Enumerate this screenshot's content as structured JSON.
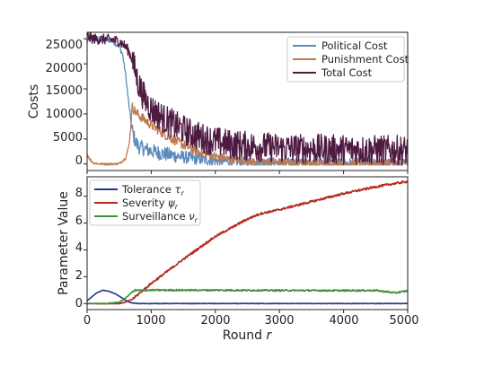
{
  "chart_data": [
    {
      "type": "line",
      "ylabel": "Costs",
      "xlim": [
        0,
        5000
      ],
      "ylim": [
        -1300,
        26300
      ],
      "xticks": [
        0,
        1000,
        2000,
        3000,
        4000,
        5000
      ],
      "yticks": [
        0,
        5000,
        10000,
        15000,
        20000,
        25000
      ],
      "ytick_labels": [
        "0",
        "5000",
        "10000",
        "15000",
        "20000",
        "25000"
      ],
      "legend_position": "top-right",
      "grid": false,
      "series": [
        {
          "name": "Political Cost",
          "color": "#5b8bbd",
          "x": [
            0,
            100,
            200,
            300,
            400,
            500,
            550,
            600,
            650,
            700,
            750,
            800,
            900,
            1000,
            1200,
            1400,
            1600,
            1800,
            2000,
            2200,
            2500,
            3000,
            3500,
            4000,
            4500,
            5000
          ],
          "y": [
            24600,
            24900,
            25000,
            24900,
            24500,
            23500,
            22000,
            18000,
            12000,
            7000,
            4500,
            3500,
            3000,
            2600,
            2000,
            1600,
            1200,
            900,
            700,
            500,
            350,
            250,
            200,
            150,
            120,
            100
          ],
          "noise": 1500
        },
        {
          "name": "Punishment Cost",
          "color": "#c07a50",
          "x": [
            0,
            50,
            100,
            200,
            300,
            400,
            500,
            600,
            650,
            680,
            700,
            750,
            800,
            900,
            1000,
            1200,
            1400,
            1600,
            1800,
            2000,
            2200,
            2500,
            3000,
            3500,
            4000,
            4500,
            5000
          ],
          "y": [
            2000,
            800,
            200,
            0,
            0,
            0,
            50,
            1200,
            3500,
            7000,
            11500,
            10500,
            9800,
            8800,
            7800,
            6000,
            4500,
            3200,
            2200,
            1500,
            1000,
            600,
            350,
            250,
            200,
            170,
            150
          ],
          "noise": 1000
        },
        {
          "name": "Total Cost",
          "color": "#4e1a42",
          "x": [
            0,
            100,
            200,
            300,
            400,
            500,
            600,
            650,
            700,
            750,
            800,
            900,
            1000,
            1200,
            1400,
            1600,
            1800,
            2000,
            2200,
            2500,
            3000,
            3500,
            4000,
            4500,
            5000
          ],
          "y": [
            25500,
            25000,
            24900,
            24900,
            24800,
            24500,
            23500,
            22500,
            21000,
            18500,
            16000,
            13000,
            11000,
            9000,
            7500,
            6200,
            5200,
            4500,
            4000,
            3600,
            3200,
            3000,
            2900,
            2800,
            2700
          ],
          "noise": 3000
        }
      ]
    },
    {
      "type": "line",
      "xlabel_prefix": "Round",
      "xlabel_var": "r",
      "ylabel": "Parameter Value",
      "xlim": [
        0,
        5000
      ],
      "ylim": [
        -0.45,
        9.45
      ],
      "xticks": [
        0,
        1000,
        2000,
        3000,
        4000,
        5000
      ],
      "xtick_labels": [
        "0",
        "1000",
        "2000",
        "3000",
        "4000",
        "5000"
      ],
      "yticks": [
        0,
        2,
        4,
        6,
        8
      ],
      "ytick_labels": [
        "0",
        "2",
        "4",
        "6",
        "8"
      ],
      "legend_position": "top-left",
      "grid": false,
      "series": [
        {
          "name_text": "Tolerance",
          "name_sym": "τ",
          "name_sub": "r",
          "color": "#1f3a8f",
          "x": [
            0,
            50,
            100,
            150,
            200,
            250,
            300,
            350,
            400,
            450,
            500,
            550,
            600,
            650,
            700,
            750,
            800,
            1000,
            2000,
            3000,
            4000,
            5000
          ],
          "y": [
            0.2,
            0.4,
            0.6,
            0.8,
            0.9,
            1.0,
            0.95,
            0.9,
            0.8,
            0.7,
            0.55,
            0.4,
            0.25,
            0.12,
            0.05,
            0.02,
            0.0,
            0.0,
            0.0,
            0.0,
            0.0,
            0.0
          ],
          "noise": 0.02
        },
        {
          "name_text": "Severity",
          "name_sym": "ψ",
          "name_sub": "r",
          "color": "#b22a22",
          "x": [
            0,
            300,
            500,
            600,
            700,
            800,
            1000,
            1500,
            2000,
            2500,
            2700,
            3000,
            3500,
            4000,
            4500,
            4800,
            5000
          ],
          "y": [
            0.0,
            0.0,
            0.0,
            0.1,
            0.3,
            0.7,
            1.5,
            3.3,
            5.0,
            6.3,
            6.7,
            7.0,
            7.6,
            8.2,
            8.7,
            8.95,
            9.1
          ],
          "noise": 0.08
        },
        {
          "name_text": "Surveillance",
          "name_sym": "ν",
          "name_sub": "r",
          "color": "#3f8f3f",
          "x": [
            0,
            300,
            500,
            600,
            700,
            750,
            800,
            1000,
            2000,
            3000,
            4000,
            4500,
            4800,
            5000
          ],
          "y": [
            0.0,
            0.0,
            0.1,
            0.4,
            0.85,
            1.0,
            0.98,
            1.0,
            1.0,
            0.98,
            0.97,
            0.98,
            0.8,
            0.95
          ],
          "noise": 0.06
        }
      ]
    }
  ]
}
